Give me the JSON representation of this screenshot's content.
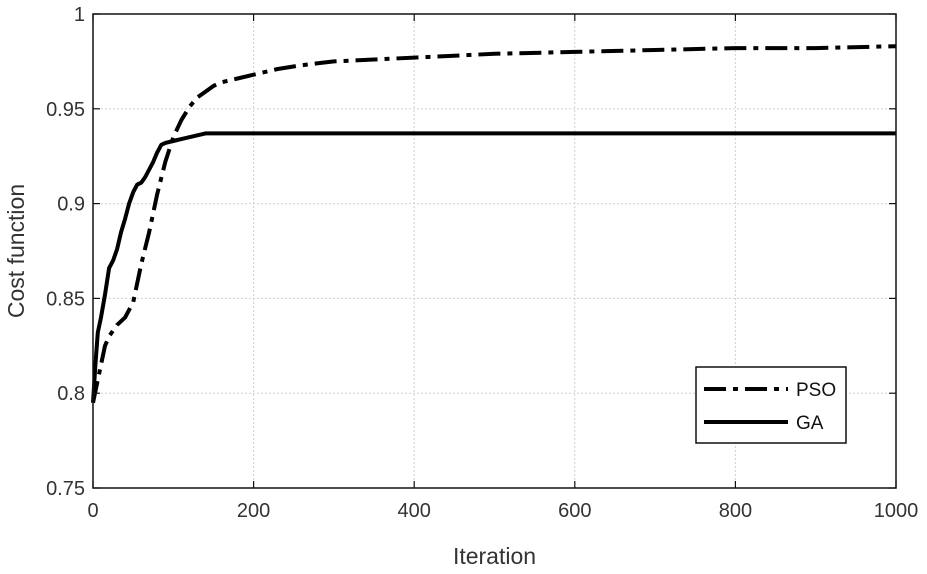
{
  "chart_data": {
    "type": "line",
    "xlabel": "Iteration",
    "ylabel": "Cost function",
    "xlim": [
      0,
      1000
    ],
    "ylim": [
      0.75,
      1.0
    ],
    "xticks": [
      0,
      200,
      400,
      600,
      800,
      1000
    ],
    "yticks": [
      0.75,
      0.8,
      0.85,
      0.9,
      0.95,
      1.0
    ],
    "xtick_labels": [
      "0",
      "200",
      "400",
      "600",
      "800",
      "1000"
    ],
    "ytick_labels": [
      "0.75",
      "0.8",
      "0.85",
      "0.9",
      "0.95",
      "1"
    ],
    "grid": true,
    "legend_position": "bottom-right",
    "series": [
      {
        "name": "PSO",
        "style": "dash-dot",
        "color": "#000000",
        "x": [
          0,
          5,
          10,
          15,
          20,
          30,
          40,
          50,
          60,
          70,
          80,
          90,
          100,
          110,
          120,
          130,
          140,
          150,
          160,
          170,
          180,
          200,
          230,
          260,
          300,
          350,
          400,
          450,
          500,
          600,
          700,
          800,
          900,
          1000
        ],
        "y": [
          0.795,
          0.805,
          0.815,
          0.825,
          0.83,
          0.836,
          0.84,
          0.848,
          0.868,
          0.885,
          0.905,
          0.922,
          0.935,
          0.944,
          0.951,
          0.956,
          0.959,
          0.962,
          0.964,
          0.965,
          0.966,
          0.968,
          0.971,
          0.973,
          0.975,
          0.976,
          0.977,
          0.978,
          0.979,
          0.98,
          0.981,
          0.982,
          0.982,
          0.983
        ]
      },
      {
        "name": "GA",
        "style": "solid",
        "color": "#000000",
        "x": [
          0,
          3,
          6,
          10,
          15,
          20,
          25,
          30,
          35,
          40,
          45,
          50,
          55,
          60,
          65,
          70,
          75,
          80,
          85,
          90,
          100,
          110,
          120,
          130,
          140,
          145,
          200,
          400,
          600,
          800,
          1000
        ],
        "y": [
          0.795,
          0.815,
          0.832,
          0.84,
          0.852,
          0.866,
          0.87,
          0.876,
          0.885,
          0.892,
          0.9,
          0.906,
          0.91,
          0.911,
          0.914,
          0.918,
          0.922,
          0.927,
          0.931,
          0.932,
          0.933,
          0.934,
          0.935,
          0.936,
          0.937,
          0.937,
          0.937,
          0.937,
          0.937,
          0.937,
          0.937
        ]
      }
    ]
  }
}
